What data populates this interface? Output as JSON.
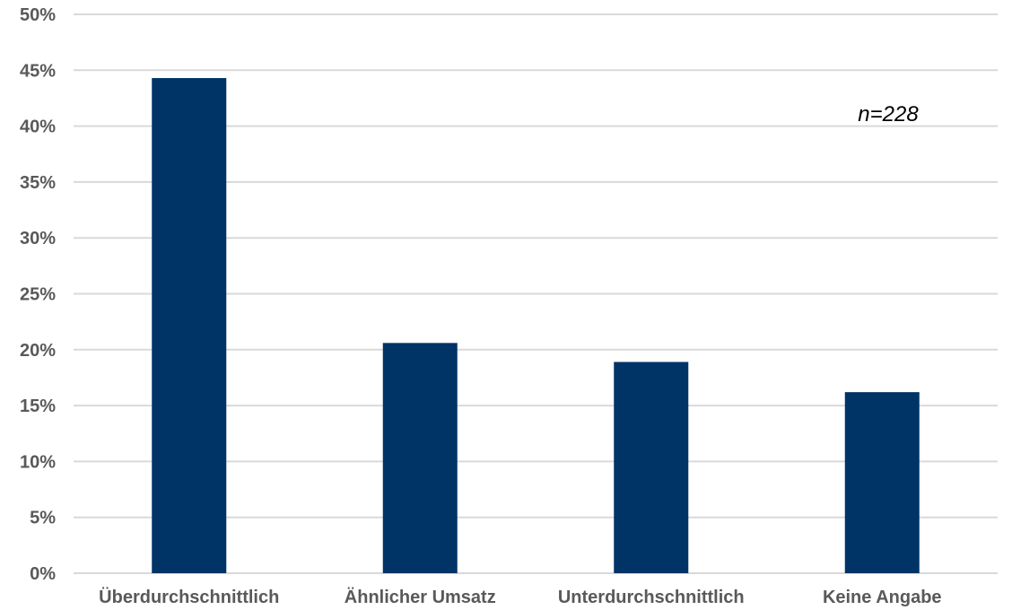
{
  "chart_data": {
    "type": "bar",
    "title": "",
    "xlabel": "",
    "ylabel": "",
    "categories": [
      "Überdurchschnittlich",
      "Ähnlicher Umsatz",
      "Unterdurchschnittlich",
      "Keine Angabe"
    ],
    "values": [
      44.3,
      20.6,
      18.9,
      16.2
    ],
    "ylim": [
      0,
      50
    ],
    "y_ticks": [
      0,
      5,
      10,
      15,
      20,
      25,
      30,
      35,
      40,
      45,
      50
    ],
    "y_tick_labels": [
      "0%",
      "5%",
      "10%",
      "15%",
      "20%",
      "25%",
      "30%",
      "35%",
      "40%",
      "45%",
      "50%"
    ],
    "y_unit": "%",
    "grid": true,
    "legend": "none",
    "annotation": "n=228",
    "colors": {
      "bar": "#003366",
      "grid": "#d9d9d9",
      "text": "#595959"
    }
  }
}
